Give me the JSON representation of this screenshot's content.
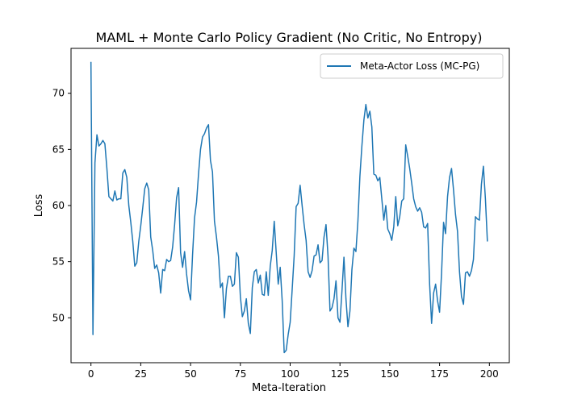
{
  "chart_data": {
    "type": "line",
    "title": "MAML + Monte Carlo Policy Gradient (No Critic, No Entropy)",
    "xlabel": "Meta-Iteration",
    "ylabel": "Loss",
    "xlim": [
      -10,
      210
    ],
    "ylim": [
      46,
      74
    ],
    "xticks": [
      0,
      25,
      50,
      75,
      100,
      125,
      150,
      175,
      200
    ],
    "yticks": [
      50,
      55,
      60,
      65,
      70
    ],
    "legend_position": "top-right",
    "series": [
      {
        "name": "Meta-Actor Loss (MC-PG)",
        "color": "#1f77b4",
        "x": [
          0,
          1,
          2,
          3,
          4,
          5,
          6,
          7,
          8,
          9,
          10,
          11,
          12,
          13,
          14,
          15,
          16,
          17,
          18,
          19,
          20,
          21,
          22,
          23,
          24,
          25,
          26,
          27,
          28,
          29,
          30,
          31,
          32,
          33,
          34,
          35,
          36,
          37,
          38,
          39,
          40,
          41,
          42,
          43,
          44,
          45,
          46,
          47,
          48,
          49,
          50,
          51,
          52,
          53,
          54,
          55,
          56,
          57,
          58,
          59,
          60,
          61,
          62,
          63,
          64,
          65,
          66,
          67,
          68,
          69,
          70,
          71,
          72,
          73,
          74,
          75,
          76,
          77,
          78,
          79,
          80,
          81,
          82,
          83,
          84,
          85,
          86,
          87,
          88,
          89,
          90,
          91,
          92,
          93,
          94,
          95,
          96,
          97,
          98,
          99,
          100,
          101,
          102,
          103,
          104,
          105,
          106,
          107,
          108,
          109,
          110,
          111,
          112,
          113,
          114,
          115,
          116,
          117,
          118,
          119,
          120,
          121,
          122,
          123,
          124,
          125,
          126,
          127,
          128,
          129,
          130,
          131,
          132,
          133,
          134,
          135,
          136,
          137,
          138,
          139,
          140,
          141,
          142,
          143,
          144,
          145,
          146,
          147,
          148,
          149,
          150,
          151,
          152,
          153,
          154,
          155,
          156,
          157,
          158,
          159,
          160,
          161,
          162,
          163,
          164,
          165,
          166,
          167,
          168,
          169,
          170,
          171,
          172,
          173,
          174,
          175,
          176,
          177,
          178,
          179,
          180,
          181,
          182,
          183,
          184,
          185,
          186,
          187,
          188,
          189,
          190,
          191,
          192,
          193,
          194,
          195,
          196,
          197,
          198,
          199
        ],
        "values": [
          72.8,
          48.5,
          63.8,
          66.3,
          65.3,
          65.5,
          65.8,
          65.5,
          63.3,
          60.8,
          60.6,
          60.4,
          61.3,
          60.5,
          60.6,
          60.6,
          62.9,
          63.2,
          62.5,
          60.0,
          58.5,
          56.8,
          54.6,
          54.9,
          56.8,
          58.2,
          59.8,
          61.5,
          62.0,
          61.4,
          57.2,
          56.0,
          54.4,
          54.7,
          54.0,
          52.2,
          54.3,
          54.2,
          55.2,
          55.0,
          55.1,
          56.3,
          58.3,
          60.7,
          61.6,
          55.8,
          54.5,
          55.9,
          53.9,
          52.4,
          51.6,
          55.6,
          58.9,
          60.3,
          62.8,
          65.0,
          66.1,
          66.4,
          66.9,
          67.2,
          64.0,
          63.0,
          58.6,
          57.2,
          55.5,
          52.7,
          53.1,
          50.0,
          52.6,
          53.7,
          53.7,
          52.8,
          53.0,
          55.8,
          55.4,
          51.9,
          50.1,
          50.6,
          51.7,
          49.5,
          48.6,
          52.7,
          54.1,
          54.3,
          53.1,
          53.8,
          52.1,
          52.0,
          54.1,
          52.0,
          54.6,
          56.0,
          58.6,
          55.8,
          53.0,
          54.5,
          51.5,
          46.9,
          47.1,
          48.5,
          49.6,
          52.5,
          55.5,
          59.9,
          60.2,
          61.8,
          60.0,
          58.3,
          56.9,
          54.1,
          53.6,
          54.2,
          55.5,
          55.6,
          56.5,
          54.9,
          55.1,
          57.2,
          58.3,
          55.5,
          50.6,
          50.9,
          51.7,
          53.3,
          50.0,
          49.6,
          52.4,
          55.4,
          51.7,
          49.2,
          50.6,
          54.3,
          56.2,
          55.9,
          58.6,
          62.6,
          65.3,
          67.6,
          69.0,
          67.8,
          68.4,
          67.0,
          62.8,
          62.7,
          62.2,
          62.5,
          60.6,
          58.7,
          60.0,
          57.9,
          57.5,
          56.9,
          58.1,
          60.8,
          58.2,
          59.0,
          60.4,
          60.6,
          65.4,
          64.4,
          63.3,
          62.0,
          60.6,
          59.9,
          59.5,
          59.8,
          59.4,
          58.1,
          58.0,
          58.4,
          53.0,
          49.5,
          52.2,
          53.0,
          51.5,
          50.5,
          54.0,
          58.5,
          57.5,
          60.8,
          62.5,
          63.3,
          61.4,
          59.2,
          57.7,
          54.1,
          51.9,
          51.2,
          54.0,
          54.1,
          53.7,
          54.2,
          55.2,
          59.0,
          58.8,
          58.7,
          61.9,
          63.5,
          60.6,
          56.8
        ]
      }
    ]
  }
}
